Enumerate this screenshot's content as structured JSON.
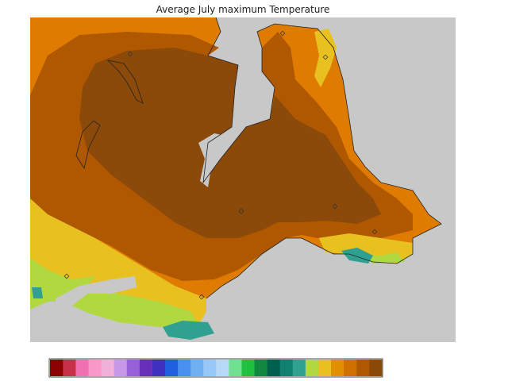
{
  "title": "Average July maximum Temperature",
  "colorbar": {
    "colors": [
      "#8b0000",
      "#c8304a",
      "#f070b0",
      "#f898c8",
      "#f0b0d8",
      "#c898e8",
      "#9860d8",
      "#6830b8",
      "#4030c0",
      "#2060e0",
      "#4890f0",
      "#70b0f0",
      "#98c8f8",
      "#b8d8f8",
      "#70e090",
      "#20c040",
      "#108840",
      "#006050",
      "#108070",
      "#30a090",
      "#b0d840",
      "#e8c020",
      "#e09000",
      "#d07000",
      "#b05800",
      "#8b4a0a"
    ]
  }
}
